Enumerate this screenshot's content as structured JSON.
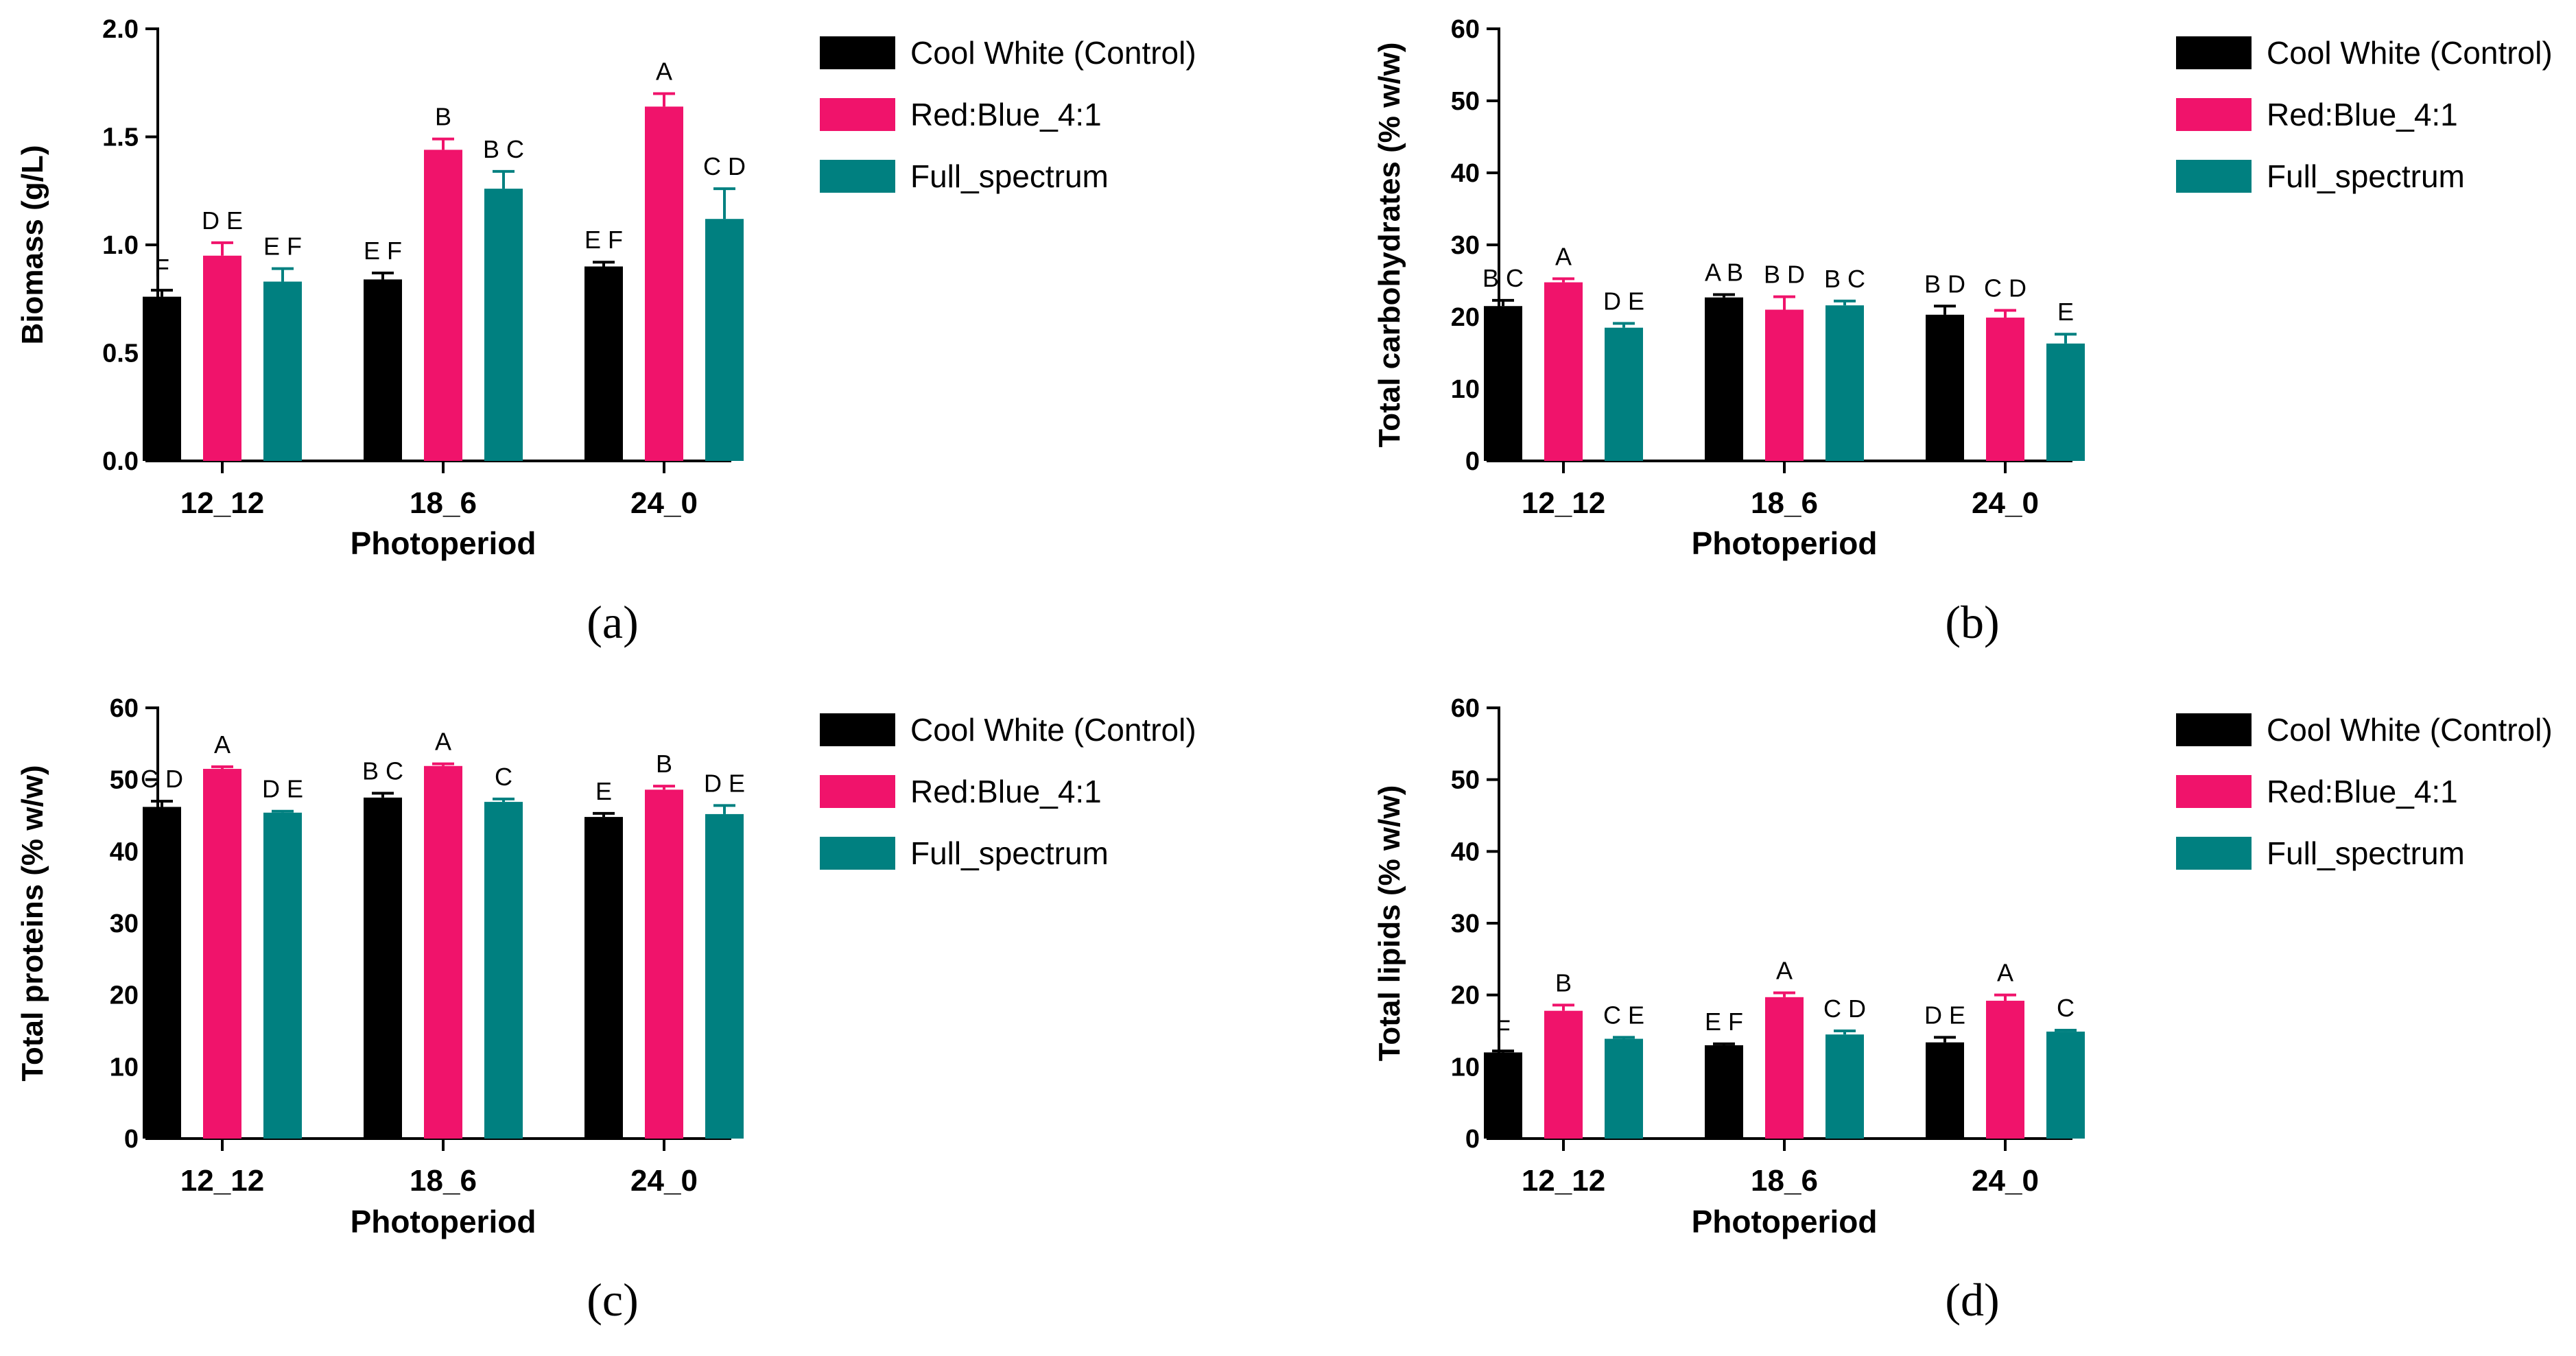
{
  "colors": {
    "control": "#000000",
    "red_blue": "#f0136b",
    "full_spectrum": "#008080"
  },
  "legend": [
    "Cool White (Control)",
    "Red:Blue_4:1",
    "Full_spectrum"
  ],
  "chart_data": [
    {
      "panel": "(a)",
      "type": "bar",
      "ylabel": "Biomass (g/L)",
      "xlabel": "Photoperiod",
      "categories": [
        "12_12",
        "18_6",
        "24_0"
      ],
      "ylim": [
        0,
        2.0
      ],
      "yticks": [
        0,
        0.5,
        1.0,
        1.5,
        2.0
      ],
      "ytick_labels": [
        "0.0",
        "0.5",
        "1.0",
        "1.5",
        "2.0"
      ],
      "series": [
        {
          "name": "Cool White (Control)",
          "values": [
            0.76,
            0.84,
            0.9
          ],
          "errors": [
            0.03,
            0.03,
            0.02
          ],
          "letters": [
            "F",
            "E F",
            "E F"
          ]
        },
        {
          "name": "Red:Blue_4:1",
          "values": [
            0.95,
            1.44,
            1.64
          ],
          "errors": [
            0.06,
            0.05,
            0.06
          ],
          "letters": [
            "D E",
            "B",
            "A"
          ]
        },
        {
          "name": "Full_spectrum",
          "values": [
            0.83,
            1.26,
            1.12
          ],
          "errors": [
            0.06,
            0.08,
            0.14
          ],
          "letters": [
            "E F",
            "B C",
            "C D"
          ]
        }
      ]
    },
    {
      "panel": "(b)",
      "type": "bar",
      "ylabel": "Total carbohydrates (% w/w)",
      "xlabel": "Photoperiod",
      "categories": [
        "12_12",
        "18_6",
        "24_0"
      ],
      "ylim": [
        0,
        60
      ],
      "yticks": [
        0,
        10,
        20,
        30,
        40,
        50,
        60
      ],
      "ytick_labels": [
        "0",
        "10",
        "20",
        "30",
        "40",
        "50",
        "60"
      ],
      "series": [
        {
          "name": "Cool White (Control)",
          "values": [
            21.5,
            22.7,
            20.3
          ],
          "errors": [
            0.8,
            0.4,
            1.2
          ],
          "letters": [
            "B C",
            "A B",
            "B D"
          ]
        },
        {
          "name": "Red:Blue_4:1",
          "values": [
            24.8,
            21.0,
            19.9
          ],
          "errors": [
            0.5,
            1.8,
            1.0
          ],
          "letters": [
            "A",
            "B D",
            "C D"
          ]
        },
        {
          "name": "Full_spectrum",
          "values": [
            18.5,
            21.6,
            16.3
          ],
          "errors": [
            0.6,
            0.6,
            1.3
          ],
          "letters": [
            "D E",
            "B C",
            "E"
          ]
        }
      ]
    },
    {
      "panel": "(c)",
      "type": "bar",
      "ylabel": "Total proteins (% w/w)",
      "xlabel": "Photoperiod",
      "categories": [
        "12_12",
        "18_6",
        "24_0"
      ],
      "ylim": [
        0,
        60
      ],
      "yticks": [
        0,
        10,
        20,
        30,
        40,
        50,
        60
      ],
      "ytick_labels": [
        "0",
        "10",
        "20",
        "30",
        "40",
        "50",
        "60"
      ],
      "series": [
        {
          "name": "Cool White (Control)",
          "values": [
            46.2,
            47.5,
            44.8
          ],
          "errors": [
            0.8,
            0.6,
            0.5
          ],
          "letters": [
            "C D",
            "B C",
            "E"
          ]
        },
        {
          "name": "Red:Blue_4:1",
          "values": [
            51.5,
            51.9,
            48.6
          ],
          "errors": [
            0.3,
            0.3,
            0.5
          ],
          "letters": [
            "A",
            "A",
            "B"
          ]
        },
        {
          "name": "Full_spectrum",
          "values": [
            45.4,
            46.9,
            45.2
          ],
          "errors": [
            0.2,
            0.4,
            1.2
          ],
          "letters": [
            "D E",
            "C",
            "D E"
          ]
        }
      ]
    },
    {
      "panel": "(d)",
      "type": "bar",
      "ylabel": "Total lipids (% w/w)",
      "xlabel": "Photoperiod",
      "categories": [
        "12_12",
        "18_6",
        "24_0"
      ],
      "ylim": [
        0,
        60
      ],
      "yticks": [
        0,
        10,
        20,
        30,
        40,
        50,
        60
      ],
      "ytick_labels": [
        "0",
        "10",
        "20",
        "30",
        "40",
        "50",
        "60"
      ],
      "series": [
        {
          "name": "Cool White (Control)",
          "values": [
            12.0,
            13.0,
            13.4
          ],
          "errors": [
            0.2,
            0.2,
            0.7
          ],
          "letters": [
            "F",
            "E F",
            "D E"
          ]
        },
        {
          "name": "Red:Blue_4:1",
          "values": [
            17.8,
            19.7,
            19.2
          ],
          "errors": [
            0.8,
            0.6,
            0.8
          ],
          "letters": [
            "B",
            "A",
            "A"
          ]
        },
        {
          "name": "Full_spectrum",
          "values": [
            13.9,
            14.5,
            14.9
          ],
          "errors": [
            0.2,
            0.5,
            0.2
          ],
          "letters": [
            "C E",
            "C D",
            "C"
          ]
        }
      ]
    }
  ]
}
